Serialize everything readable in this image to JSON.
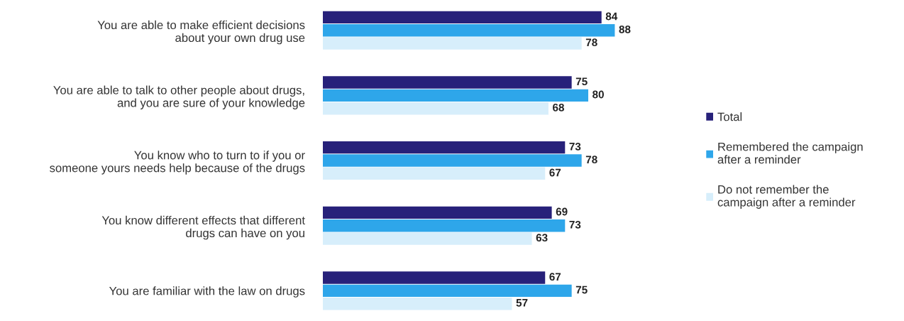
{
  "chart_data": {
    "type": "bar",
    "orientation": "horizontal",
    "categories": [
      "You are able to make efficient decisions\nabout your own drug use",
      "You are able to talk to other people about drugs,\nand you are sure of your knowledge",
      "You know who to turn to if you or\nsomeone yours needs help because of the drugs",
      "You know different effects that different\ndrugs can have on you",
      "You are familiar with the law on drugs"
    ],
    "series": [
      {
        "name": "Total",
        "color": "#27217a",
        "values": [
          84,
          75,
          73,
          69,
          67
        ]
      },
      {
        "name": "Remembered the campaign\nafter a reminder",
        "color": "#2ea6ea",
        "values": [
          88,
          80,
          78,
          73,
          75
        ]
      },
      {
        "name": "Do not remember the\ncampaign after a reminder",
        "color": "#d7eefb",
        "values": [
          78,
          68,
          67,
          63,
          57
        ]
      }
    ],
    "tick_labels": "y",
    "data_labels": true,
    "grid": false,
    "legend": "right"
  }
}
